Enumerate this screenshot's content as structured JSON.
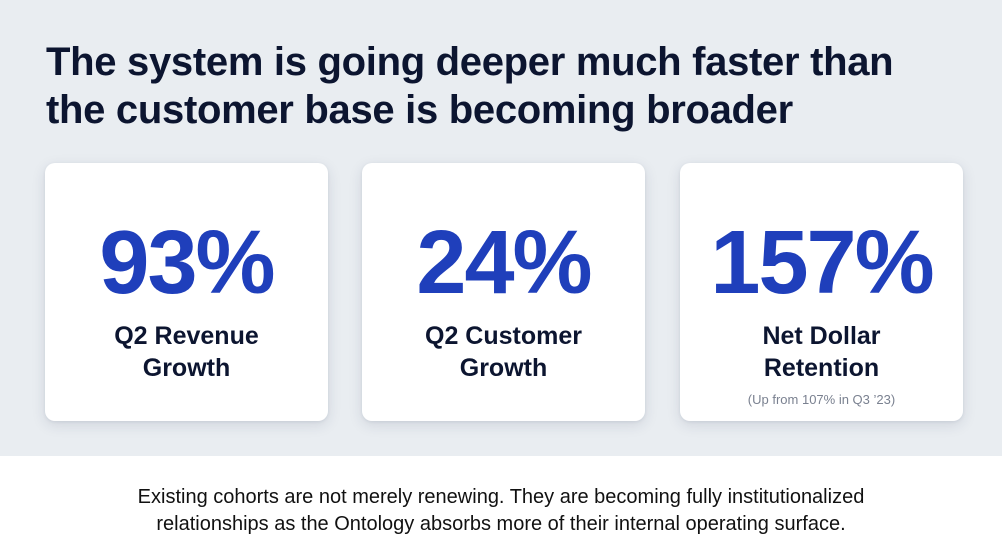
{
  "headline": {
    "line1": "The system is going deeper much faster than",
    "line2": "the customer base is becoming broader"
  },
  "cards": [
    {
      "value": "93%",
      "label_line1": "Q2 Revenue",
      "label_line2": "Growth",
      "note": ""
    },
    {
      "value": "24%",
      "label_line1": "Q2 Customer",
      "label_line2": "Growth",
      "note": ""
    },
    {
      "value": "157%",
      "label_line1": "Net Dollar",
      "label_line2": "Retention",
      "note": "(Up from 107% in Q3 ’23)"
    }
  ],
  "footer": {
    "line1": "Existing cohorts are not merely renewing. They are becoming fully institutionalized",
    "line2": "relationships as the Ontology absorbs more of their internal operating surface."
  },
  "colors": {
    "stat_value": "#1f3fbb",
    "heading": "#0c1530",
    "band_background": "#e9edf1"
  }
}
